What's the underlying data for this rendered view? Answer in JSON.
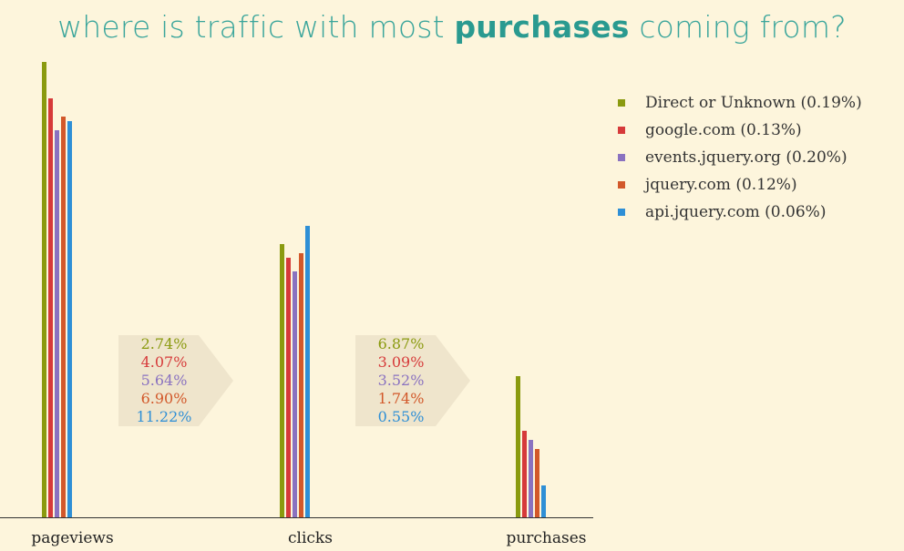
{
  "title": {
    "prefix": "where is traffic with most ",
    "emphasis": "purchases",
    "suffix": " coming from?"
  },
  "legend": [
    {
      "label": "Direct or Unknown (0.19%)",
      "color": "#8a9a0f"
    },
    {
      "label": "google.com (0.13%)",
      "color": "#d63a3a"
    },
    {
      "label": "events.jquery.org (0.20%)",
      "color": "#8a72c0"
    },
    {
      "label": "jquery.com (0.12%)",
      "color": "#d2582a"
    },
    {
      "label": "api.jquery.com (0.06%)",
      "color": "#2e8fd6"
    }
  ],
  "funnels": [
    {
      "rates": [
        "2.74%",
        "4.07%",
        "5.64%",
        "6.90%",
        "11.22%"
      ]
    },
    {
      "rates": [
        "6.87%",
        "3.09%",
        "3.52%",
        "1.74%",
        "0.55%"
      ]
    }
  ],
  "chart_data": {
    "type": "bar",
    "categories": [
      "pageviews",
      "clicks",
      "purchases"
    ],
    "ylim": [
      0,
      100
    ],
    "series": [
      {
        "name": "Direct or Unknown (0.19%)",
        "color": "#8a9a0f",
        "values": [
          100,
          60,
          31
        ]
      },
      {
        "name": "google.com (0.13%)",
        "color": "#d63a3a",
        "values": [
          92,
          57,
          19
        ]
      },
      {
        "name": "events.jquery.org (0.20%)",
        "color": "#8a72c0",
        "values": [
          85,
          54,
          17
        ]
      },
      {
        "name": "jquery.com (0.12%)",
        "color": "#d2582a",
        "values": [
          88,
          58,
          15
        ]
      },
      {
        "name": "api.jquery.com (0.06%)",
        "color": "#2e8fd6",
        "values": [
          87,
          64,
          7
        ]
      }
    ],
    "grid": false,
    "legend_position": "top-right"
  }
}
